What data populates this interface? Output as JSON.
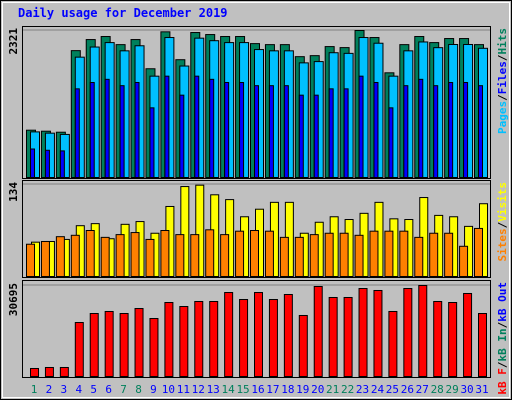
{
  "chart_data": [
    {
      "type": "bar",
      "title": "Daily usage for December 2019",
      "ylim": [
        0,
        2321
      ],
      "yticks": [
        2321
      ],
      "legend_separator": "/",
      "series": [
        {
          "name": "Pages",
          "color": "#00c0ff",
          "values": [
            720,
            700,
            680,
            1900,
            2060,
            2130,
            2000,
            2080,
            1600,
            2210,
            1760,
            2200,
            2160,
            2130,
            2130,
            2020,
            2000,
            2000,
            1810,
            1830,
            1970,
            1960,
            2210,
            2120,
            1600,
            2000,
            2140,
            2050,
            2100,
            2100,
            2040
          ]
        },
        {
          "name": "Files",
          "color": "#0000ff",
          "values": [
            450,
            430,
            420,
            1400,
            1500,
            1550,
            1450,
            1500,
            1100,
            1600,
            1300,
            1600,
            1550,
            1500,
            1500,
            1450,
            1450,
            1450,
            1300,
            1300,
            1400,
            1400,
            1600,
            1500,
            1100,
            1450,
            1550,
            1450,
            1500,
            1500,
            1450
          ]
        },
        {
          "name": "Hits",
          "color": "#00805c",
          "values": [
            747,
            731,
            715,
            2003,
            2178,
            2226,
            2098,
            2178,
            1717,
            2300,
            1860,
            2289,
            2257,
            2226,
            2226,
            2114,
            2098,
            2098,
            1908,
            1924,
            2067,
            2051,
            2321,
            2210,
            1653,
            2098,
            2226,
            2130,
            2194,
            2194,
            2098
          ]
        }
      ]
    },
    {
      "type": "bar",
      "ylim": [
        0,
        134
      ],
      "yticks": [
        134
      ],
      "legend_separator": "/",
      "series": [
        {
          "name": "Sites",
          "color": "#ff8000",
          "values": [
            47,
            51,
            58,
            60,
            67,
            57,
            61,
            64,
            54,
            67,
            61,
            61,
            68,
            61,
            66,
            67,
            66,
            57,
            57,
            61,
            63,
            63,
            60,
            66,
            66,
            66,
            57,
            63,
            63,
            44,
            70
          ]
        },
        {
          "name": "Visits",
          "color": "#ffff00",
          "values": [
            50,
            51,
            54,
            74,
            77,
            55,
            76,
            80,
            63,
            102,
            131,
            133,
            119,
            112,
            87,
            98,
            108,
            108,
            63,
            79,
            87,
            83,
            92,
            108,
            84,
            83,
            115,
            89,
            87,
            73,
            106
          ]
        }
      ]
    },
    {
      "type": "bar",
      "ylim": [
        0,
        30695
      ],
      "yticks": [
        30695
      ],
      "legend_separator": "/",
      "categories": [
        "1",
        "2",
        "3",
        "4",
        "5",
        "6",
        "7",
        "8",
        "9",
        "10",
        "11",
        "12",
        "13",
        "14",
        "15",
        "16",
        "17",
        "18",
        "19",
        "20",
        "21",
        "22",
        "23",
        "24",
        "25",
        "26",
        "27",
        "28",
        "29",
        "30",
        "31"
      ],
      "category_colors": [
        "#00805c",
        "#0000ff",
        "#0000ff",
        "#0000ff",
        "#0000ff",
        "#0000ff",
        "#00805c",
        "#00805c",
        "#0000ff",
        "#0000ff",
        "#0000ff",
        "#0000ff",
        "#0000ff",
        "#00805c",
        "#00805c",
        "#0000ff",
        "#0000ff",
        "#0000ff",
        "#0000ff",
        "#0000ff",
        "#00805c",
        "#00805c",
        "#0000ff",
        "#0000ff",
        "#0000ff",
        "#0000ff",
        "#0000ff",
        "#00805c",
        "#00805c",
        "#0000ff",
        "#0000ff"
      ],
      "series": [
        {
          "name": "kB F",
          "color": "#ff0000",
          "values": [
            2700,
            3040,
            3040,
            18210,
            21250,
            21930,
            21250,
            22930,
            19560,
            24960,
            23610,
            25300,
            25300,
            28330,
            25970,
            28330,
            25970,
            27660,
            20580,
            30360,
            26650,
            26650,
            29680,
            29010,
            21930,
            29680,
            30695,
            25300,
            24960,
            28000,
            21250
          ]
        },
        {
          "name": "kB In",
          "color": "#00805c"
        },
        {
          "name": "kB Out",
          "color": "#0000ff"
        }
      ]
    }
  ]
}
